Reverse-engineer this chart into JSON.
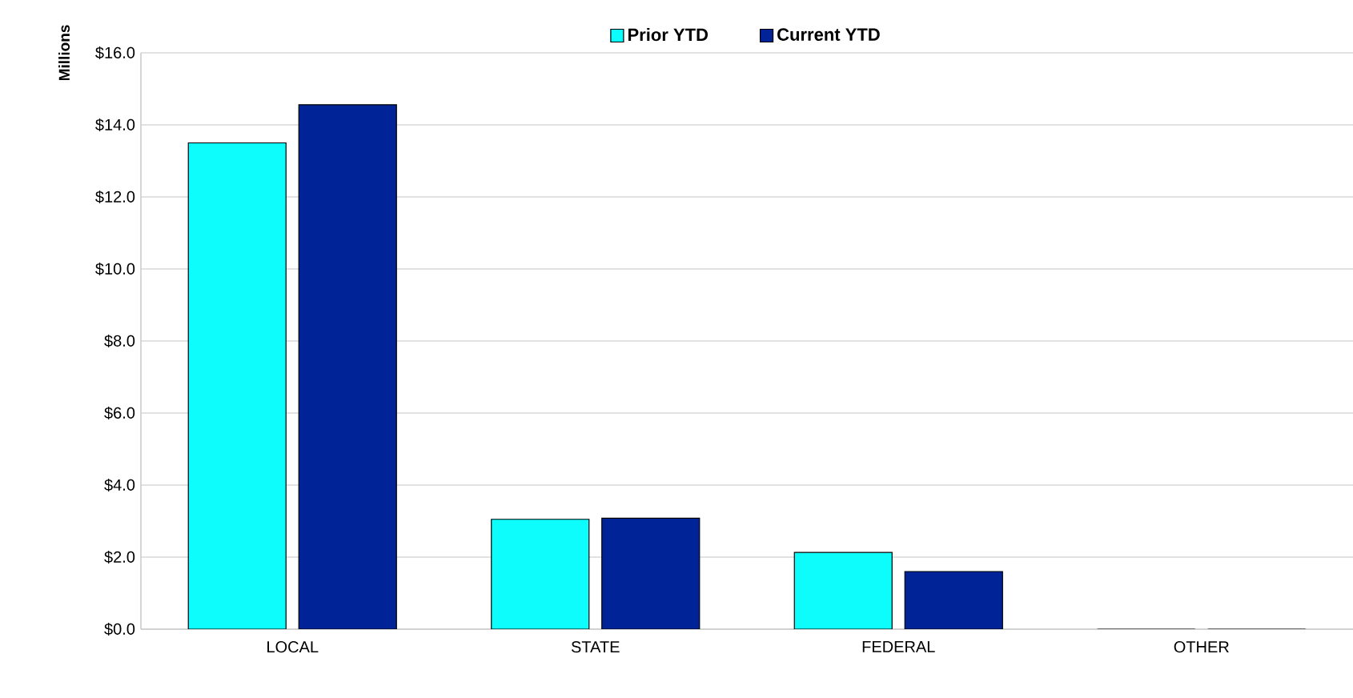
{
  "chart_data": {
    "type": "bar",
    "ylabel": "Millions",
    "categories": [
      "LOCAL",
      "STATE",
      "FEDERAL",
      "OTHER"
    ],
    "series": [
      {
        "name": "Prior YTD",
        "color": "#0dfdfd",
        "values": [
          13.5,
          3.05,
          2.13,
          0
        ]
      },
      {
        "name": "Current YTD",
        "color": "#002497",
        "values": [
          14.56,
          3.08,
          1.6,
          0
        ]
      }
    ],
    "ylim": [
      0,
      16
    ],
    "yticks": [
      {
        "value": 0,
        "label": "$0.0"
      },
      {
        "value": 2,
        "label": "$2.0"
      },
      {
        "value": 4,
        "label": "$4.0"
      },
      {
        "value": 6,
        "label": "$6.0"
      },
      {
        "value": 8,
        "label": "$8.0"
      },
      {
        "value": 10,
        "label": "$10.0"
      },
      {
        "value": 12,
        "label": "$12.0"
      },
      {
        "value": 14,
        "label": "$14.0"
      },
      {
        "value": 16,
        "label": "$16.0"
      }
    ],
    "grid": "y",
    "legend": "top"
  }
}
